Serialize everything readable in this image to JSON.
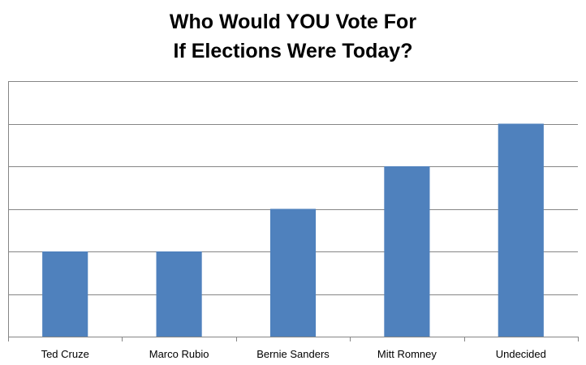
{
  "chart_data": {
    "type": "bar",
    "title_lines": [
      "Who Would YOU Vote For",
      "If Elections Were Today?"
    ],
    "categories": [
      "Ted Cruze",
      "Marco Rubio",
      "Bernie Sanders",
      "Mitt Romney",
      "Undecided"
    ],
    "values": [
      2,
      2,
      3,
      4,
      5
    ],
    "ylim": [
      0,
      6
    ],
    "y_gridline_step": 1,
    "y_tick_labels_shown": false,
    "grid": true,
    "legend": "none",
    "bar_color": "#4F81BD",
    "grid_color": "#868686",
    "axis_color": "#868686"
  }
}
